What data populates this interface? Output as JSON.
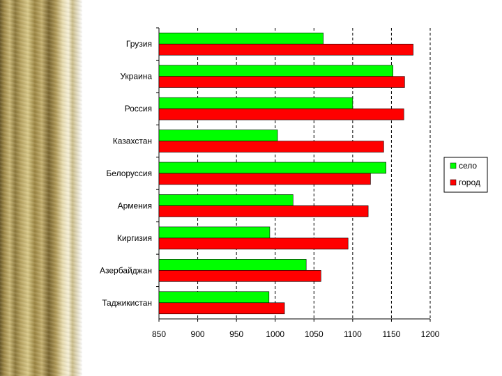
{
  "chart_data": {
    "type": "bar",
    "orientation": "horizontal",
    "categories": [
      "Грузия",
      "Украина",
      "Россия",
      "Казахстан",
      "Белоруссия",
      "Армения",
      "Киргизия",
      "Азербайджан",
      "Таджикистан"
    ],
    "series": [
      {
        "name": "село",
        "color": "#00ff00",
        "values": [
          1062,
          1152,
          1100,
          1003,
          1143,
          1023,
          993,
          1040,
          992
        ]
      },
      {
        "name": "город",
        "color": "#ff0000",
        "values": [
          1178,
          1167,
          1166,
          1140,
          1123,
          1120,
          1094,
          1059,
          1012
        ]
      }
    ],
    "xlim": [
      850,
      1200
    ],
    "xticks": [
      "850",
      "900",
      "950",
      "1000",
      "1050",
      "1100",
      "1150",
      "1200"
    ],
    "grid": "vertical dashed",
    "legend_position": "right"
  }
}
